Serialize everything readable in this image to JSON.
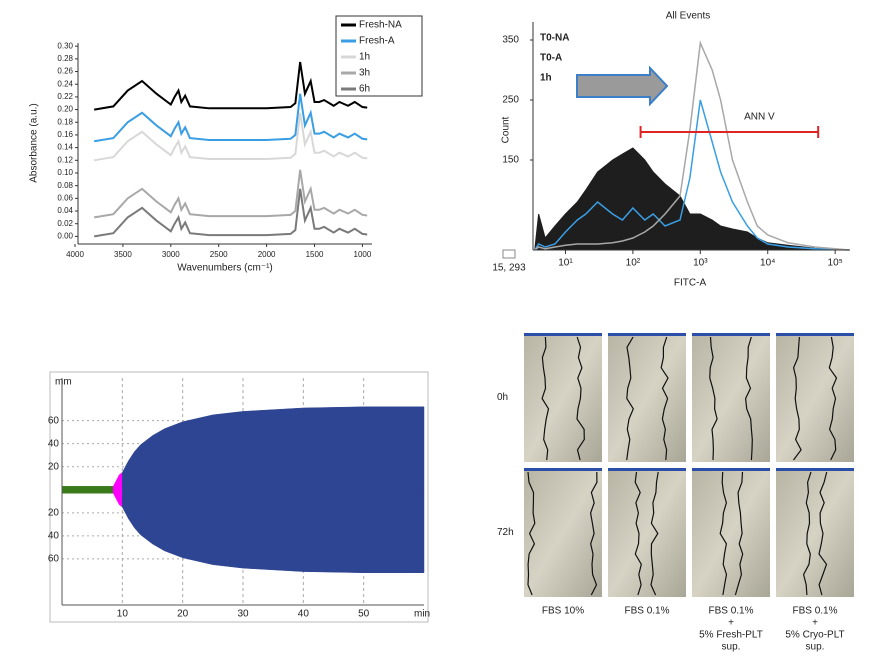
{
  "chart_data": [
    {
      "type": "line",
      "xlabel": "Wavenumbers (cm⁻¹)",
      "ylabel": "Absorbance (a.u.)",
      "x": [
        3800,
        3600,
        3450,
        3300,
        3150,
        3000,
        2960,
        2920,
        2890,
        2850,
        2800,
        2600,
        2000,
        1750,
        1700,
        1650,
        1600,
        1540,
        1500,
        1450,
        1400,
        1300,
        1240,
        1150,
        1080,
        1000,
        950
      ],
      "series": [
        {
          "name": "Fresh-NA",
          "color": "#000000",
          "values": [
            0.2,
            0.205,
            0.23,
            0.245,
            0.225,
            0.208,
            0.22,
            0.23,
            0.212,
            0.222,
            0.205,
            0.202,
            0.202,
            0.204,
            0.21,
            0.275,
            0.225,
            0.245,
            0.212,
            0.212,
            0.215,
            0.206,
            0.212,
            0.206,
            0.212,
            0.204,
            0.203
          ]
        },
        {
          "name": "Fresh-A",
          "color": "#3a9ee4",
          "values": [
            0.15,
            0.155,
            0.18,
            0.195,
            0.175,
            0.158,
            0.17,
            0.18,
            0.162,
            0.172,
            0.155,
            0.152,
            0.152,
            0.154,
            0.16,
            0.225,
            0.175,
            0.195,
            0.162,
            0.162,
            0.165,
            0.156,
            0.162,
            0.156,
            0.162,
            0.154,
            0.153
          ]
        },
        {
          "name": "1h",
          "color": "#d8d8d8",
          "values": [
            0.12,
            0.125,
            0.15,
            0.165,
            0.145,
            0.128,
            0.14,
            0.15,
            0.132,
            0.142,
            0.125,
            0.122,
            0.122,
            0.124,
            0.13,
            0.195,
            0.145,
            0.165,
            0.132,
            0.132,
            0.135,
            0.126,
            0.132,
            0.126,
            0.132,
            0.124,
            0.123
          ]
        },
        {
          "name": "3h",
          "color": "#a8a8a8",
          "values": [
            0.03,
            0.035,
            0.06,
            0.075,
            0.055,
            0.038,
            0.05,
            0.06,
            0.042,
            0.052,
            0.035,
            0.032,
            0.032,
            0.034,
            0.04,
            0.105,
            0.055,
            0.075,
            0.042,
            0.042,
            0.045,
            0.036,
            0.042,
            0.036,
            0.042,
            0.034,
            0.033
          ]
        },
        {
          "name": "6h",
          "color": "#7a7a7a",
          "values": [
            0,
            0.005,
            0.03,
            0.045,
            0.025,
            0.008,
            0.02,
            0.03,
            0.012,
            0.022,
            0.005,
            0.002,
            0.002,
            0.004,
            0.01,
            0.075,
            0.025,
            0.045,
            0.012,
            0.012,
            0.015,
            0.006,
            0.012,
            0.006,
            0.012,
            0.004,
            0.003
          ]
        }
      ],
      "xlim": [
        4000,
        900
      ],
      "xticks": [
        4000,
        3500,
        3000,
        2500,
        2000,
        1500,
        1000
      ],
      "ylim": [
        -0.012,
        0.305
      ],
      "yticks": [
        {
          "value": 0,
          "label": "0.00"
        },
        {
          "value": 0.02,
          "label": "0.02"
        },
        {
          "value": 0.04,
          "label": "0.04"
        },
        {
          "value": 0.06,
          "label": "0.06"
        },
        {
          "value": 0.08,
          "label": "0.08"
        },
        {
          "value": 0.1,
          "label": "0.10"
        },
        {
          "value": 0.12,
          "label": "0.12"
        },
        {
          "value": 0.14,
          "label": "0.14"
        },
        {
          "value": 0.16,
          "label": "0.16"
        },
        {
          "value": 0.18,
          "label": "0.18"
        },
        {
          "value": 0.2,
          "label": "0.20"
        },
        {
          "value": 0.22,
          "label": "0.22"
        },
        {
          "value": 0.24,
          "label": "0.24"
        },
        {
          "value": 0.26,
          "label": "0.26"
        },
        {
          "value": 0.28,
          "label": "0.28"
        },
        {
          "value": 0.3,
          "label": "0.30"
        }
      ],
      "legend": "top-right"
    },
    {
      "type": "line",
      "title": "All Events",
      "xlabel": "FITC-A",
      "ylabel": "Count",
      "log_x": true,
      "annotation": "ANN V",
      "gate": [
        130,
        56000
      ],
      "corner_label": "15, 293",
      "x": [
        3.5,
        4,
        5,
        7,
        10,
        15,
        20,
        30,
        50,
        70,
        100,
        150,
        200,
        300,
        500,
        700,
        1000,
        1500,
        2000,
        3000,
        5000,
        7000,
        10000,
        20000,
        50000,
        100000,
        160000
      ],
      "series": [
        {
          "name": "T0-NA",
          "color": "#1e1e1e",
          "fill": true,
          "values": [
            0,
            60,
            20,
            40,
            60,
            80,
            100,
            130,
            150,
            160,
            170,
            150,
            130,
            110,
            90,
            60,
            60,
            50,
            40,
            35,
            30,
            20,
            12,
            8,
            3,
            1,
            0
          ]
        },
        {
          "name": "T0-A",
          "color": "#3a9ee4",
          "values": [
            0,
            10,
            5,
            10,
            30,
            50,
            60,
            80,
            60,
            50,
            70,
            50,
            60,
            40,
            50,
            120,
            250,
            180,
            130,
            80,
            40,
            20,
            10,
            5,
            2,
            1,
            0
          ]
        },
        {
          "name": "1h",
          "color": "#a8a8a8",
          "values": [
            0,
            5,
            2,
            5,
            8,
            10,
            10,
            10,
            12,
            15,
            20,
            30,
            40,
            60,
            90,
            200,
            345,
            300,
            250,
            150,
            80,
            40,
            25,
            12,
            5,
            2,
            0
          ]
        }
      ],
      "xlim": [
        3.3,
        166000
      ],
      "xticks": [
        {
          "value": 10,
          "label": "10¹"
        },
        {
          "value": 100,
          "label": "10²"
        },
        {
          "value": 1000,
          "label": "10³"
        },
        {
          "value": 10000,
          "label": "10⁴"
        },
        {
          "value": 100000,
          "label": "10⁵"
        }
      ],
      "ylim": [
        0,
        380
      ],
      "yticks": [
        150,
        250,
        350
      ]
    },
    {
      "type": "area",
      "mirrored": true,
      "ylabel": "mm",
      "xlabel": "min",
      "series": [
        {
          "color": "#3a7a1a",
          "x": [
            0,
            8.5
          ],
          "values": [
            3,
            3
          ]
        },
        {
          "color": "#ff00ff",
          "x": [
            8.5,
            9,
            9.5,
            10
          ],
          "values": [
            3,
            8,
            13,
            15
          ]
        },
        {
          "color": "#2e4593",
          "x": [
            10,
            11,
            12,
            13,
            15,
            17,
            20,
            25,
            30,
            40,
            50,
            60
          ],
          "values": [
            15,
            25,
            33,
            39,
            47,
            53,
            59,
            65,
            68,
            71,
            72,
            72
          ]
        }
      ],
      "xlim": [
        0,
        60
      ],
      "xticks": [
        10,
        20,
        30,
        40,
        50
      ],
      "ylim": [
        -100,
        97
      ],
      "yticks": [
        60,
        40,
        20,
        {
          "value": -20,
          "label": "20"
        },
        {
          "value": -40,
          "label": "40"
        },
        {
          "value": -60,
          "label": "60"
        }
      ],
      "grid": true
    }
  ],
  "image_panel": {
    "rows": [
      "0h",
      "72h"
    ],
    "columns": [
      [
        "FBS 10%"
      ],
      [
        "FBS 0.1%"
      ],
      [
        "FBS 0.1%",
        "+",
        "5% Fresh-PLT",
        "sup."
      ],
      [
        "FBS 0.1%",
        "+",
        "5% Cryo-PLT",
        "sup."
      ]
    ]
  }
}
